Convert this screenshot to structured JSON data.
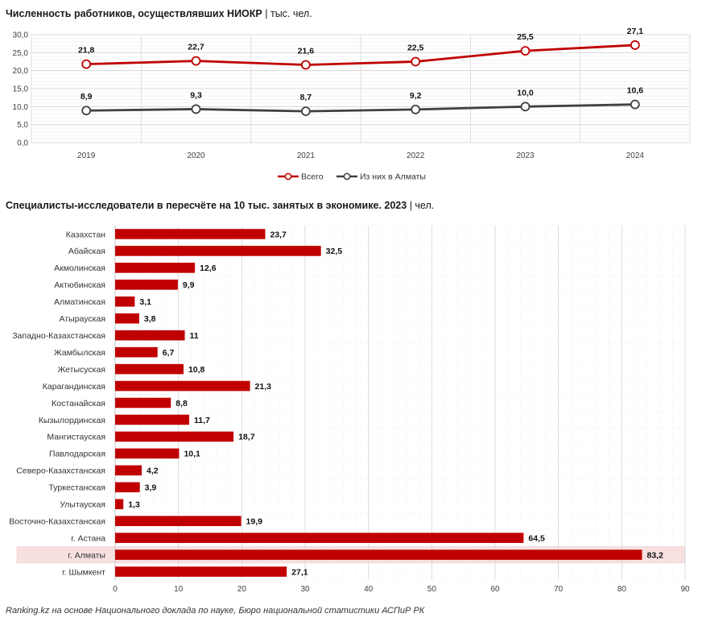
{
  "chart_data": [
    {
      "type": "line",
      "title": "Численность работников, осуществлявших НИОКР",
      "unit": "тыс. чел.",
      "x": [
        "2019",
        "2020",
        "2021",
        "2022",
        "2023",
        "2024"
      ],
      "ylim": [
        0,
        30
      ],
      "yticks": [
        "0,0",
        "5,0",
        "10,0",
        "15,0",
        "20,0",
        "25,0",
        "30,0"
      ],
      "grid": true,
      "legend_position": "bottom",
      "series": [
        {
          "name": "Всего",
          "color": "#c00000",
          "values": [
            21.8,
            22.7,
            21.6,
            22.5,
            25.5,
            27.1
          ],
          "labels": [
            "21,8",
            "22,7",
            "21,6",
            "22,5",
            "25,5",
            "27,1"
          ]
        },
        {
          "name": "Из них в Алматы",
          "color": "#404040",
          "values": [
            8.9,
            9.3,
            8.7,
            9.2,
            10.0,
            10.6
          ],
          "labels": [
            "8,9",
            "9,3",
            "8,7",
            "9,2",
            "10,0",
            "10,6"
          ]
        }
      ]
    },
    {
      "type": "bar",
      "orientation": "horizontal",
      "title": "Специалисты-исследователи в пересчёте на 10 тыс. занятых в экономике. 2023",
      "unit": "чел.",
      "bar_color": "#c00000",
      "highlight_color": "#f8e0e0",
      "highlight_category": "г. Алматы",
      "xlim": [
        0,
        90
      ],
      "xticks": [
        "0",
        "10",
        "20",
        "30",
        "40",
        "50",
        "60",
        "70",
        "80",
        "90"
      ],
      "categories": [
        "Казахстан",
        "Абайская",
        "Акмолинская",
        "Актюбинская",
        "Алматинская",
        "Атырауская",
        "Западно-Казахстанская",
        "Жамбылская",
        "Жетысуская",
        "Карагандинская",
        "Костанайская",
        "Кызылординская",
        "Мангистауская",
        "Павлодарская",
        "Северо-Казахстанская",
        "Туркестанская",
        "Улытауская",
        "Восточно-Казахстанская",
        "г. Астана",
        "г. Алматы",
        "г. Шымкент"
      ],
      "values": [
        23.7,
        32.5,
        12.6,
        9.9,
        3.1,
        3.8,
        11,
        6.7,
        10.8,
        21.3,
        8.8,
        11.7,
        18.7,
        10.1,
        4.2,
        3.9,
        1.3,
        19.9,
        64.5,
        83.2,
        27.1
      ],
      "labels": [
        "23,7",
        "32,5",
        "12,6",
        "9,9",
        "3,1",
        "3,8",
        "11",
        "6,7",
        "10,8",
        "21,3",
        "8,8",
        "11,7",
        "18,7",
        "10,1",
        "4,2",
        "3,9",
        "1,3",
        "19,9",
        "64,5",
        "83,2",
        "27,1"
      ]
    }
  ],
  "footer": "Ranking.kz на основе Национального доклада по науке, Бюро национальной статистики АСПиР РК"
}
